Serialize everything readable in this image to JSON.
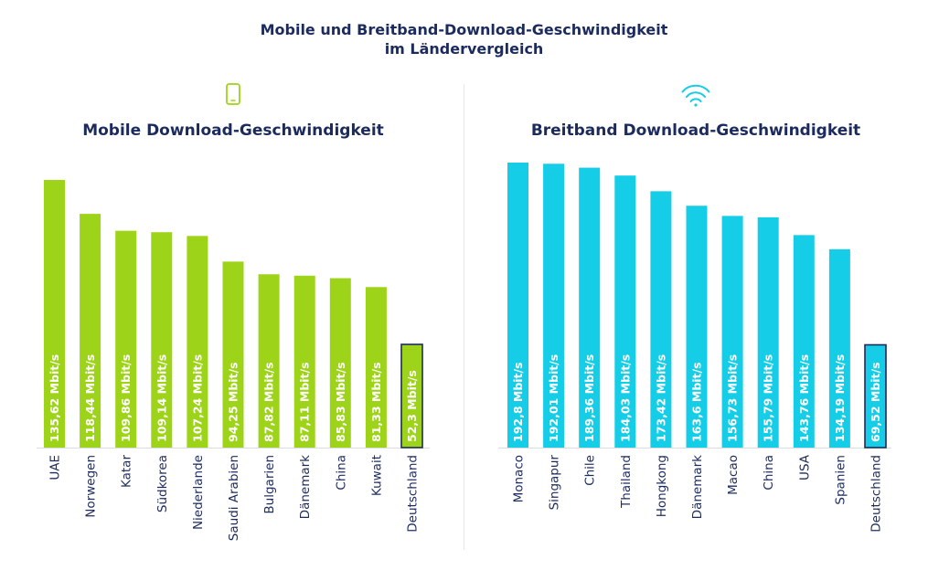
{
  "title": {
    "line1": "Mobile und Breitband-Download-Geschwindigkeit",
    "line2": "im Ländervergleich"
  },
  "colors": {
    "title": "#1c2b5e",
    "mobile": "#9dd318",
    "broadband": "#16cde8",
    "highlight_border": "#1c2b5e"
  },
  "chart_data": [
    {
      "type": "bar",
      "title": "Mobile Download-Geschwindigkeit",
      "icon": "smartphone-icon",
      "categories": [
        "UAE",
        "Norwegen",
        "Katar",
        "Südkorea",
        "Niederlande",
        "Saudi Arabien",
        "Bulgarien",
        "Dänemark",
        "China",
        "Kuwait",
        "Deutschland"
      ],
      "values": [
        135.62,
        118.44,
        109.86,
        109.14,
        107.24,
        94.25,
        87.82,
        87.11,
        85.83,
        81.33,
        52.3
      ],
      "value_labels": [
        "135,62 Mbit/s",
        "118,44 Mbit/s",
        "109,86 Mbit/s",
        "109,14 Mbit/s",
        "107,24 Mbit/s",
        "94,25 Mbit/s",
        "87,82 Mbit/s",
        "87,11 Mbit/s",
        "85,83 Mbit/s",
        "81,33 Mbit/s",
        "52,3 Mbit/s"
      ],
      "highlight": "Deutschland",
      "ylim": [
        0,
        135.62
      ]
    },
    {
      "type": "bar",
      "title": "Breitband Download-Geschwindigkeit",
      "icon": "wifi-icon",
      "categories": [
        "Monaco",
        "Singapur",
        "Chile",
        "Thailand",
        "Hongkong",
        "Dänemark",
        "Macao",
        "China",
        "USA",
        "Spanien",
        "Deutschland"
      ],
      "values": [
        192.8,
        192.01,
        189.36,
        184.03,
        173.42,
        163.6,
        156.73,
        155.79,
        143.76,
        134.19,
        69.52
      ],
      "value_labels": [
        "192,8 Mbit/s",
        "192,01 Mbit/s",
        "189,36 Mbit/s",
        "184,03 Mbit/s",
        "173,42 Mbit/s",
        "163,6 Mbit/s",
        "156,73 Mbit/s",
        "155,79 Mbit/s",
        "143,76 Mbit/s",
        "134,19 Mbit/s",
        "69,52 Mbit/s"
      ],
      "highlight": "Deutschland",
      "ylim": [
        0,
        192.8
      ]
    }
  ]
}
